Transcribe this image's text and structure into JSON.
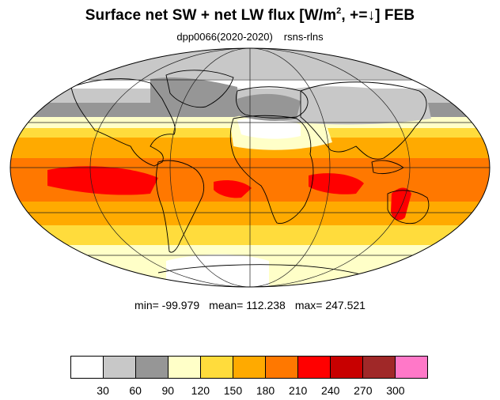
{
  "title": {
    "main": "Surface net SW + net LW flux [W/m",
    "sup": "2",
    "suffix": ", +=↓]  FEB"
  },
  "subtitle": {
    "experiment": "dpp0066(2020-2020)",
    "variable": "rsns-rlns"
  },
  "stats": {
    "min": "min= -99.979",
    "mean": "mean= 112.238",
    "max": "max= 247.521"
  },
  "colorbar": {
    "levels": [
      "30",
      "60",
      "90",
      "120",
      "150",
      "180",
      "210",
      "240",
      "270",
      "300"
    ],
    "colors": [
      "#ffffff",
      "#c8c8c8",
      "#969696",
      "#ffffc8",
      "#ffdc3c",
      "#ffaa00",
      "#ff7800",
      "#ff0000",
      "#c80000",
      "#a02828",
      "#ff78c8"
    ]
  },
  "map": {
    "projection": "mollweide",
    "land_outline_color": "#000000",
    "grid_color": "#1e1e1e"
  }
}
